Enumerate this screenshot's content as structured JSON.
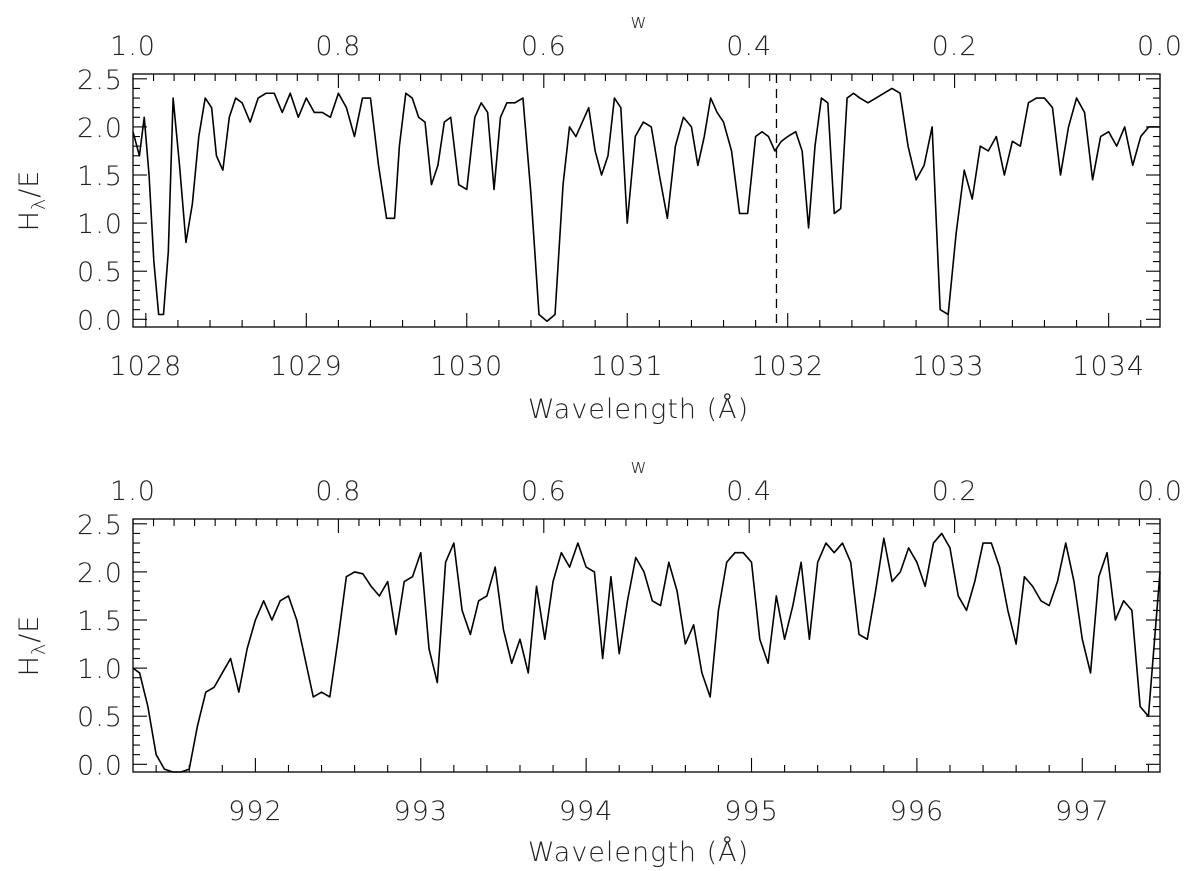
{
  "chart_data": [
    {
      "type": "line",
      "xlabel": "Wavelength (Å)",
      "ylabel_main": "H",
      "ylabel_sub": "λ",
      "ylabel_tail": "/E",
      "top_axis_title": "w",
      "xlim": [
        1027.92,
        1034.32
      ],
      "ylim": [
        -0.08,
        2.55
      ],
      "x_ticks": [
        1028,
        1029,
        1030,
        1031,
        1032,
        1033,
        1034
      ],
      "x_tick_labels": [
        "1028",
        "1029",
        "1030",
        "1031",
        "1032",
        "1033",
        "1034"
      ],
      "y_ticks": [
        0.0,
        0.5,
        1.0,
        1.5,
        2.0,
        2.5
      ],
      "y_tick_labels": [
        "0.0",
        "0.5",
        "1.0",
        "1.5",
        "2.0",
        "2.5"
      ],
      "top_ticks": [
        1.0,
        0.8,
        0.6,
        0.4,
        0.2,
        0.0
      ],
      "top_tick_labels": [
        "1.0",
        "0.8",
        "0.6",
        "0.4",
        "0.2",
        "0.0"
      ],
      "reference_line_x": 1031.93,
      "series": [
        {
          "x": [
            1027.92,
            1027.96,
            1027.99,
            1028.02,
            1028.05,
            1028.08,
            1028.11,
            1028.14,
            1028.17,
            1028.21,
            1028.25,
            1028.29,
            1028.33,
            1028.37,
            1028.41,
            1028.44,
            1028.48,
            1028.52,
            1028.56,
            1028.6,
            1028.65,
            1028.7,
            1028.75,
            1028.8,
            1028.85,
            1028.9,
            1028.95,
            1029.0,
            1029.05,
            1029.1,
            1029.15,
            1029.2,
            1029.25,
            1029.3,
            1029.35,
            1029.4,
            1029.45,
            1029.5,
            1029.55,
            1029.58,
            1029.62,
            1029.66,
            1029.7,
            1029.74,
            1029.78,
            1029.82,
            1029.86,
            1029.9,
            1029.95,
            1030.0,
            1030.05,
            1030.09,
            1030.13,
            1030.17,
            1030.21,
            1030.25,
            1030.3,
            1030.35,
            1030.4,
            1030.45,
            1030.5,
            1030.55,
            1030.6,
            1030.64,
            1030.68,
            1030.72,
            1030.76,
            1030.8,
            1030.84,
            1030.88,
            1030.92,
            1030.96,
            1031.0,
            1031.05,
            1031.1,
            1031.15,
            1031.2,
            1031.25,
            1031.3,
            1031.35,
            1031.4,
            1031.44,
            1031.48,
            1031.52,
            1031.56,
            1031.6,
            1031.65,
            1031.7,
            1031.75,
            1031.8,
            1031.84,
            1031.88,
            1031.92,
            1031.96,
            1032.0,
            1032.05,
            1032.09,
            1032.13,
            1032.17,
            1032.21,
            1032.25,
            1032.29,
            1032.33,
            1032.37,
            1032.41,
            1032.45,
            1032.5,
            1032.55,
            1032.6,
            1032.65,
            1032.7,
            1032.75,
            1032.8,
            1032.85,
            1032.9,
            1032.95,
            1033.0,
            1033.05,
            1033.1,
            1033.15,
            1033.2,
            1033.25,
            1033.3,
            1033.35,
            1033.4,
            1033.45,
            1033.5,
            1033.55,
            1033.6,
            1033.65,
            1033.7,
            1033.75,
            1033.8,
            1033.85,
            1033.9,
            1033.95,
            1034.0,
            1034.05,
            1034.1,
            1034.15,
            1034.2,
            1034.25,
            1034.32
          ],
          "y": [
            1.95,
            1.7,
            2.1,
            1.5,
            0.6,
            0.05,
            0.05,
            0.7,
            2.3,
            1.6,
            0.8,
            1.2,
            1.9,
            2.3,
            2.2,
            1.7,
            1.55,
            2.1,
            2.3,
            2.25,
            2.05,
            2.3,
            2.35,
            2.35,
            2.15,
            2.35,
            2.1,
            2.3,
            2.15,
            2.15,
            2.1,
            2.35,
            2.2,
            1.9,
            2.3,
            2.3,
            1.6,
            1.05,
            1.05,
            1.8,
            2.35,
            2.3,
            2.1,
            2.05,
            1.4,
            1.6,
            2.05,
            2.1,
            1.4,
            1.35,
            2.1,
            2.25,
            2.15,
            1.35,
            2.1,
            2.25,
            2.25,
            2.3,
            1.3,
            0.05,
            -0.02,
            0.05,
            1.4,
            2.0,
            1.9,
            2.05,
            2.2,
            1.75,
            1.5,
            1.7,
            2.3,
            2.2,
            1.0,
            1.9,
            2.05,
            2.0,
            1.5,
            1.05,
            1.8,
            2.1,
            2.0,
            1.6,
            1.9,
            2.3,
            2.15,
            2.05,
            1.75,
            1.1,
            1.1,
            1.9,
            1.95,
            1.9,
            1.75,
            1.85,
            1.9,
            1.95,
            1.75,
            0.95,
            1.8,
            2.3,
            2.25,
            1.1,
            1.15,
            2.3,
            2.35,
            2.3,
            2.25,
            2.3,
            2.35,
            2.4,
            2.35,
            1.8,
            1.45,
            1.6,
            2.0,
            0.1,
            0.05,
            0.9,
            1.55,
            1.25,
            1.8,
            1.75,
            1.9,
            1.5,
            1.85,
            1.8,
            2.25,
            2.3,
            2.3,
            2.2,
            1.5,
            2.0,
            2.3,
            2.15,
            1.45,
            1.9,
            1.95,
            1.8,
            2.0,
            1.6,
            1.9,
            2.0,
            2.0
          ]
        }
      ]
    },
    {
      "type": "line",
      "xlabel": "Wavelength (Å)",
      "ylabel_main": "H",
      "ylabel_sub": "λ",
      "ylabel_tail": "/E",
      "top_axis_title": "w",
      "xlim": [
        991.26,
        997.47
      ],
      "ylim": [
        -0.08,
        2.55
      ],
      "x_ticks": [
        992,
        993,
        994,
        995,
        996,
        997
      ],
      "x_tick_labels": [
        "992",
        "993",
        "994",
        "995",
        "996",
        "997"
      ],
      "y_ticks": [
        0.0,
        0.5,
        1.0,
        1.5,
        2.0,
        2.5
      ],
      "y_tick_labels": [
        "0.0",
        "0.5",
        "1.0",
        "1.5",
        "2.0",
        "2.5"
      ],
      "top_ticks": [
        1.0,
        0.8,
        0.6,
        0.4,
        0.2,
        0.0
      ],
      "top_tick_labels": [
        "1.0",
        "0.8",
        "0.6",
        "0.4",
        "0.2",
        "0.0"
      ],
      "series": [
        {
          "x": [
            991.26,
            991.3,
            991.35,
            991.4,
            991.45,
            991.5,
            991.55,
            991.6,
            991.65,
            991.7,
            991.75,
            991.8,
            991.85,
            991.9,
            991.95,
            992.0,
            992.05,
            992.1,
            992.15,
            992.2,
            992.25,
            992.3,
            992.35,
            992.4,
            992.45,
            992.5,
            992.55,
            992.6,
            992.65,
            992.7,
            992.75,
            992.8,
            992.85,
            992.9,
            992.95,
            993.0,
            993.05,
            993.1,
            993.15,
            993.2,
            993.25,
            993.3,
            993.35,
            993.4,
            993.45,
            993.5,
            993.55,
            993.6,
            993.65,
            993.7,
            993.75,
            993.8,
            993.85,
            993.9,
            993.95,
            994.0,
            994.05,
            994.1,
            994.15,
            994.2,
            994.25,
            994.3,
            994.35,
            994.4,
            994.45,
            994.5,
            994.55,
            994.6,
            994.65,
            994.7,
            994.75,
            994.8,
            994.85,
            994.9,
            994.95,
            995.0,
            995.05,
            995.1,
            995.15,
            995.2,
            995.25,
            995.3,
            995.35,
            995.4,
            995.45,
            995.5,
            995.55,
            995.6,
            995.65,
            995.7,
            995.75,
            995.8,
            995.85,
            995.9,
            995.95,
            996.0,
            996.05,
            996.1,
            996.15,
            996.2,
            996.25,
            996.3,
            996.35,
            996.4,
            996.45,
            996.5,
            996.55,
            996.6,
            996.65,
            996.7,
            996.75,
            996.8,
            996.85,
            996.9,
            996.95,
            997.0,
            997.05,
            997.1,
            997.15,
            997.2,
            997.25,
            997.3,
            997.35,
            997.4,
            997.47
          ],
          "y": [
            1.0,
            0.95,
            0.6,
            0.1,
            -0.05,
            -0.08,
            -0.08,
            -0.05,
            0.4,
            0.75,
            0.8,
            0.95,
            1.1,
            0.75,
            1.2,
            1.5,
            1.7,
            1.5,
            1.7,
            1.75,
            1.5,
            1.1,
            0.7,
            0.75,
            0.7,
            1.3,
            1.95,
            2.0,
            1.98,
            1.85,
            1.75,
            1.9,
            1.35,
            1.9,
            1.95,
            2.2,
            1.2,
            0.85,
            2.1,
            2.3,
            1.6,
            1.35,
            1.7,
            1.75,
            2.05,
            1.4,
            1.05,
            1.3,
            0.95,
            1.85,
            1.3,
            1.9,
            2.2,
            2.05,
            2.3,
            2.05,
            2.0,
            1.1,
            1.95,
            1.15,
            1.7,
            2.15,
            2.0,
            1.7,
            1.65,
            2.1,
            1.8,
            1.25,
            1.45,
            0.95,
            0.7,
            1.6,
            2.1,
            2.2,
            2.2,
            2.1,
            1.3,
            1.05,
            1.75,
            1.3,
            1.65,
            2.1,
            1.3,
            2.1,
            2.3,
            2.2,
            2.3,
            2.1,
            1.35,
            1.3,
            1.8,
            2.35,
            1.9,
            2.0,
            2.25,
            2.1,
            1.85,
            2.3,
            2.4,
            2.25,
            1.75,
            1.6,
            1.9,
            2.3,
            2.3,
            2.05,
            1.6,
            1.25,
            1.95,
            1.85,
            1.7,
            1.65,
            1.9,
            2.3,
            1.9,
            1.3,
            0.95,
            1.95,
            2.2,
            1.5,
            1.7,
            1.6,
            0.6,
            0.5,
            2.0
          ]
        }
      ]
    }
  ]
}
